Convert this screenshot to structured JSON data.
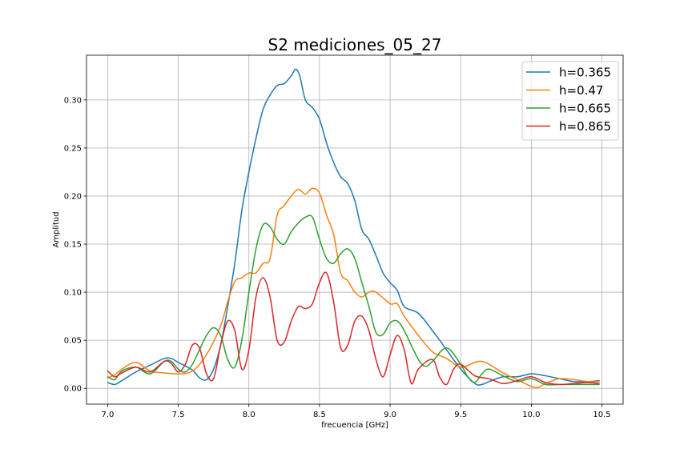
{
  "chart_data": {
    "type": "line",
    "title": "S2 mediciones_05_27",
    "xlabel": "frecuencia [GHz]",
    "ylabel": "Amplitud",
    "xlim": [
      6.85,
      10.65
    ],
    "ylim": [
      -0.0165,
      0.3465
    ],
    "xticks": [
      7.0,
      7.5,
      8.0,
      8.5,
      9.0,
      9.5,
      10.0,
      10.5
    ],
    "xtick_labels": [
      "7.0",
      "7.5",
      "8.0",
      "8.5",
      "9.0",
      "9.5",
      "10.0",
      "10.5"
    ],
    "yticks": [
      0.0,
      0.05,
      0.1,
      0.15,
      0.2,
      0.25,
      0.3
    ],
    "ytick_labels": [
      "0.00",
      "0.05",
      "0.10",
      "0.15",
      "0.20",
      "0.25",
      "0.30"
    ],
    "grid": true,
    "legend_position": "top-right",
    "series": [
      {
        "name": "h=0.365",
        "color": "#1f77b4",
        "points": [
          [
            7.0,
            0.006
          ],
          [
            7.05,
            0.004
          ],
          [
            7.1,
            0.008
          ],
          [
            7.2,
            0.017
          ],
          [
            7.3,
            0.024
          ],
          [
            7.4,
            0.031
          ],
          [
            7.45,
            0.031
          ],
          [
            7.5,
            0.027
          ],
          [
            7.6,
            0.019
          ],
          [
            7.65,
            0.011
          ],
          [
            7.7,
            0.009
          ],
          [
            7.75,
            0.02
          ],
          [
            7.8,
            0.045
          ],
          [
            7.85,
            0.085
          ],
          [
            7.9,
            0.13
          ],
          [
            7.95,
            0.185
          ],
          [
            8.0,
            0.225
          ],
          [
            8.05,
            0.26
          ],
          [
            8.1,
            0.29
          ],
          [
            8.15,
            0.305
          ],
          [
            8.2,
            0.315
          ],
          [
            8.25,
            0.317
          ],
          [
            8.3,
            0.325
          ],
          [
            8.33,
            0.332
          ],
          [
            8.36,
            0.325
          ],
          [
            8.4,
            0.3
          ],
          [
            8.45,
            0.292
          ],
          [
            8.5,
            0.28
          ],
          [
            8.55,
            0.255
          ],
          [
            8.6,
            0.235
          ],
          [
            8.65,
            0.22
          ],
          [
            8.7,
            0.213
          ],
          [
            8.75,
            0.195
          ],
          [
            8.8,
            0.165
          ],
          [
            8.85,
            0.155
          ],
          [
            8.9,
            0.138
          ],
          [
            8.95,
            0.12
          ],
          [
            9.0,
            0.11
          ],
          [
            9.05,
            0.102
          ],
          [
            9.1,
            0.085
          ],
          [
            9.2,
            0.078
          ],
          [
            9.3,
            0.06
          ],
          [
            9.4,
            0.04
          ],
          [
            9.5,
            0.02
          ],
          [
            9.6,
            0.005
          ],
          [
            9.65,
            0.004
          ],
          [
            9.7,
            0.007
          ],
          [
            9.8,
            0.012
          ],
          [
            9.9,
            0.012
          ],
          [
            10.0,
            0.015
          ],
          [
            10.1,
            0.013
          ],
          [
            10.2,
            0.01
          ],
          [
            10.3,
            0.007
          ],
          [
            10.4,
            0.007
          ],
          [
            10.48,
            0.008
          ]
        ]
      },
      {
        "name": "h=0.47",
        "color": "#ff7f0e",
        "points": [
          [
            7.0,
            0.011
          ],
          [
            7.05,
            0.014
          ],
          [
            7.1,
            0.02
          ],
          [
            7.2,
            0.027
          ],
          [
            7.3,
            0.018
          ],
          [
            7.4,
            0.016
          ],
          [
            7.5,
            0.015
          ],
          [
            7.6,
            0.018
          ],
          [
            7.7,
            0.035
          ],
          [
            7.8,
            0.065
          ],
          [
            7.85,
            0.09
          ],
          [
            7.9,
            0.111
          ],
          [
            7.95,
            0.115
          ],
          [
            8.0,
            0.12
          ],
          [
            8.05,
            0.12
          ],
          [
            8.1,
            0.13
          ],
          [
            8.15,
            0.135
          ],
          [
            8.2,
            0.18
          ],
          [
            8.25,
            0.19
          ],
          [
            8.3,
            0.2
          ],
          [
            8.35,
            0.207
          ],
          [
            8.4,
            0.202
          ],
          [
            8.45,
            0.208
          ],
          [
            8.5,
            0.203
          ],
          [
            8.55,
            0.18
          ],
          [
            8.6,
            0.16
          ],
          [
            8.65,
            0.12
          ],
          [
            8.7,
            0.112
          ],
          [
            8.75,
            0.1
          ],
          [
            8.8,
            0.095
          ],
          [
            8.85,
            0.1
          ],
          [
            8.9,
            0.1
          ],
          [
            9.0,
            0.088
          ],
          [
            9.05,
            0.088
          ],
          [
            9.1,
            0.075
          ],
          [
            9.2,
            0.055
          ],
          [
            9.3,
            0.038
          ],
          [
            9.4,
            0.031
          ],
          [
            9.5,
            0.022
          ],
          [
            9.6,
            0.027
          ],
          [
            9.65,
            0.028
          ],
          [
            9.7,
            0.025
          ],
          [
            9.8,
            0.016
          ],
          [
            9.9,
            0.009
          ],
          [
            10.0,
            0.002
          ],
          [
            10.05,
            0.001
          ],
          [
            10.1,
            0.005
          ],
          [
            10.2,
            0.01
          ],
          [
            10.3,
            0.009
          ],
          [
            10.4,
            0.007
          ],
          [
            10.48,
            0.007
          ]
        ]
      },
      {
        "name": "h=0.665",
        "color": "#2ca02c",
        "points": [
          [
            7.0,
            0.012
          ],
          [
            7.05,
            0.009
          ],
          [
            7.1,
            0.018
          ],
          [
            7.2,
            0.022
          ],
          [
            7.3,
            0.015
          ],
          [
            7.4,
            0.028
          ],
          [
            7.45,
            0.028
          ],
          [
            7.5,
            0.02
          ],
          [
            7.55,
            0.017
          ],
          [
            7.6,
            0.025
          ],
          [
            7.65,
            0.04
          ],
          [
            7.7,
            0.055
          ],
          [
            7.75,
            0.063
          ],
          [
            7.8,
            0.055
          ],
          [
            7.85,
            0.03
          ],
          [
            7.9,
            0.022
          ],
          [
            7.95,
            0.05
          ],
          [
            8.0,
            0.1
          ],
          [
            8.05,
            0.145
          ],
          [
            8.1,
            0.17
          ],
          [
            8.15,
            0.168
          ],
          [
            8.2,
            0.155
          ],
          [
            8.25,
            0.15
          ],
          [
            8.3,
            0.163
          ],
          [
            8.35,
            0.172
          ],
          [
            8.4,
            0.178
          ],
          [
            8.45,
            0.178
          ],
          [
            8.5,
            0.155
          ],
          [
            8.55,
            0.135
          ],
          [
            8.6,
            0.13
          ],
          [
            8.65,
            0.14
          ],
          [
            8.7,
            0.145
          ],
          [
            8.75,
            0.135
          ],
          [
            8.8,
            0.11
          ],
          [
            8.85,
            0.085
          ],
          [
            8.9,
            0.058
          ],
          [
            8.95,
            0.056
          ],
          [
            9.0,
            0.068
          ],
          [
            9.05,
            0.07
          ],
          [
            9.1,
            0.06
          ],
          [
            9.2,
            0.03
          ],
          [
            9.25,
            0.023
          ],
          [
            9.3,
            0.028
          ],
          [
            9.4,
            0.042
          ],
          [
            9.5,
            0.025
          ],
          [
            9.55,
            0.012
          ],
          [
            9.6,
            0.006
          ],
          [
            9.65,
            0.015
          ],
          [
            9.7,
            0.02
          ],
          [
            9.8,
            0.013
          ],
          [
            9.9,
            0.007
          ],
          [
            10.0,
            0.01
          ],
          [
            10.1,
            0.004
          ],
          [
            10.2,
            0.004
          ],
          [
            10.3,
            0.004
          ],
          [
            10.4,
            0.004
          ],
          [
            10.48,
            0.004
          ]
        ]
      },
      {
        "name": "h=0.865",
        "color": "#d62728",
        "points": [
          [
            7.0,
            0.018
          ],
          [
            7.05,
            0.012
          ],
          [
            7.1,
            0.016
          ],
          [
            7.2,
            0.022
          ],
          [
            7.3,
            0.017
          ],
          [
            7.4,
            0.028
          ],
          [
            7.45,
            0.026
          ],
          [
            7.5,
            0.017
          ],
          [
            7.55,
            0.025
          ],
          [
            7.6,
            0.045
          ],
          [
            7.65,
            0.042
          ],
          [
            7.7,
            0.015
          ],
          [
            7.75,
            0.01
          ],
          [
            7.8,
            0.045
          ],
          [
            7.85,
            0.07
          ],
          [
            7.9,
            0.06
          ],
          [
            7.95,
            0.02
          ],
          [
            8.0,
            0.04
          ],
          [
            8.05,
            0.095
          ],
          [
            8.1,
            0.115
          ],
          [
            8.15,
            0.095
          ],
          [
            8.2,
            0.05
          ],
          [
            8.25,
            0.048
          ],
          [
            8.3,
            0.07
          ],
          [
            8.35,
            0.085
          ],
          [
            8.4,
            0.083
          ],
          [
            8.45,
            0.088
          ],
          [
            8.5,
            0.11
          ],
          [
            8.55,
            0.12
          ],
          [
            8.6,
            0.09
          ],
          [
            8.65,
            0.042
          ],
          [
            8.7,
            0.045
          ],
          [
            8.75,
            0.07
          ],
          [
            8.8,
            0.075
          ],
          [
            8.85,
            0.06
          ],
          [
            8.9,
            0.03
          ],
          [
            8.95,
            0.012
          ],
          [
            9.0,
            0.035
          ],
          [
            9.05,
            0.055
          ],
          [
            9.1,
            0.04
          ],
          [
            9.15,
            0.005
          ],
          [
            9.2,
            0.02
          ],
          [
            9.3,
            0.03
          ],
          [
            9.35,
            0.012
          ],
          [
            9.4,
            0.004
          ],
          [
            9.45,
            0.02
          ],
          [
            9.5,
            0.025
          ],
          [
            9.6,
            0.013
          ],
          [
            9.7,
            0.01
          ],
          [
            9.8,
            0.005
          ],
          [
            9.9,
            0.008
          ],
          [
            10.0,
            0.012
          ],
          [
            10.1,
            0.006
          ],
          [
            10.2,
            0.004
          ],
          [
            10.3,
            0.005
          ],
          [
            10.4,
            0.006
          ],
          [
            10.48,
            0.005
          ]
        ]
      }
    ]
  }
}
